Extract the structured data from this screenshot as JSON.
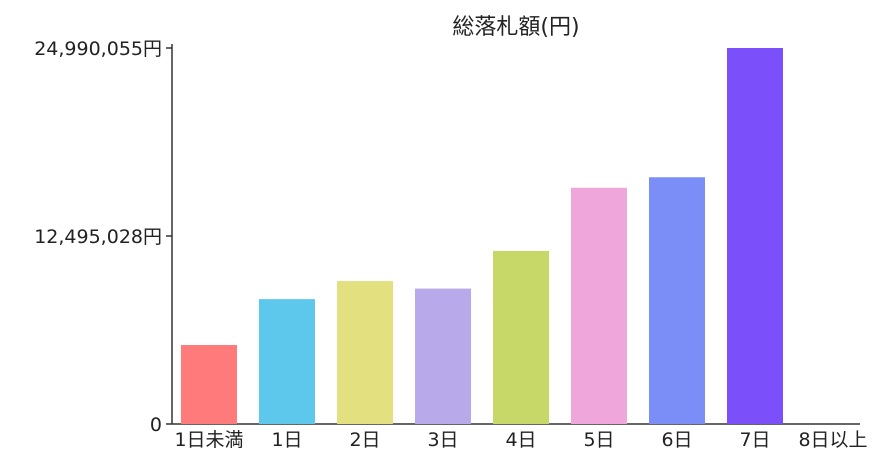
{
  "chart_data": {
    "type": "bar",
    "title": "総落札額(円)",
    "xlabel": "",
    "ylabel": "",
    "categories": [
      "1日未満",
      "1日",
      "2日",
      "3日",
      "4日",
      "5日",
      "6日",
      "7日",
      "8日以上"
    ],
    "values": [
      5250000,
      8300000,
      9500000,
      9000000,
      11500000,
      15700000,
      16400000,
      24990055,
      0
    ],
    "colors": [
      "#ff7b7b",
      "#5ec8ec",
      "#e2e07f",
      "#b7a9ea",
      "#c7d869",
      "#eea6db",
      "#7b8ef8",
      "#7b4ff9",
      "#cccccc"
    ],
    "ylim": [
      0,
      24990055
    ],
    "y_ticks": [
      {
        "value": 0,
        "label": "0"
      },
      {
        "value": 12495028,
        "label": "12,495,028円"
      },
      {
        "value": 24990055,
        "label": "24,990,055円"
      }
    ],
    "grid": false,
    "legend": "none"
  }
}
